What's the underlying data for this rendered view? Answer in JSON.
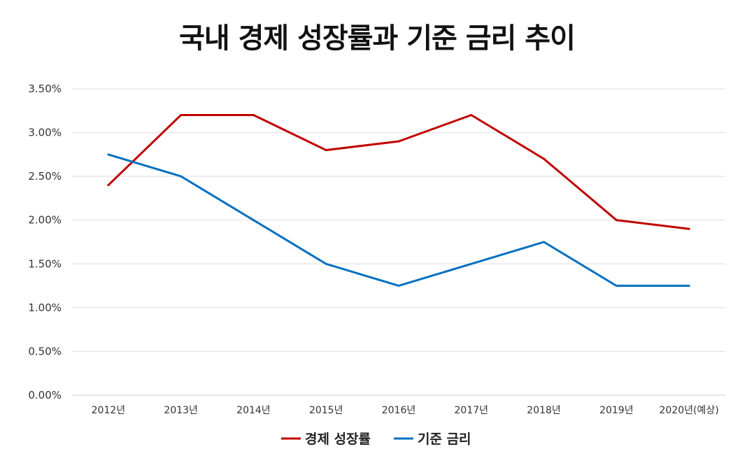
{
  "chart_data": {
    "type": "line",
    "title": "국내 경제 성장률과 기준 금리 추이",
    "categories": [
      "2012년",
      "2013년",
      "2014년",
      "2015년",
      "2016년",
      "2017년",
      "2018년",
      "2019년",
      "2020년(예상)"
    ],
    "series": [
      {
        "name": "경제 성장률",
        "color": "#c00000",
        "values": [
          2.4,
          3.2,
          3.2,
          2.8,
          2.9,
          3.2,
          2.7,
          2.0,
          1.9
        ]
      },
      {
        "name": "기준 금리",
        "color": "#0070c0",
        "values": [
          2.75,
          2.5,
          2.0,
          1.5,
          1.25,
          1.5,
          1.75,
          1.25,
          1.25
        ]
      }
    ],
    "y_ticks": [
      "0.00%",
      "0.50%",
      "1.00%",
      "1.50%",
      "2.00%",
      "2.50%",
      "3.00%",
      "3.50%"
    ],
    "ylim": [
      0,
      3.5
    ],
    "grid": true,
    "legend_position": "bottom"
  }
}
